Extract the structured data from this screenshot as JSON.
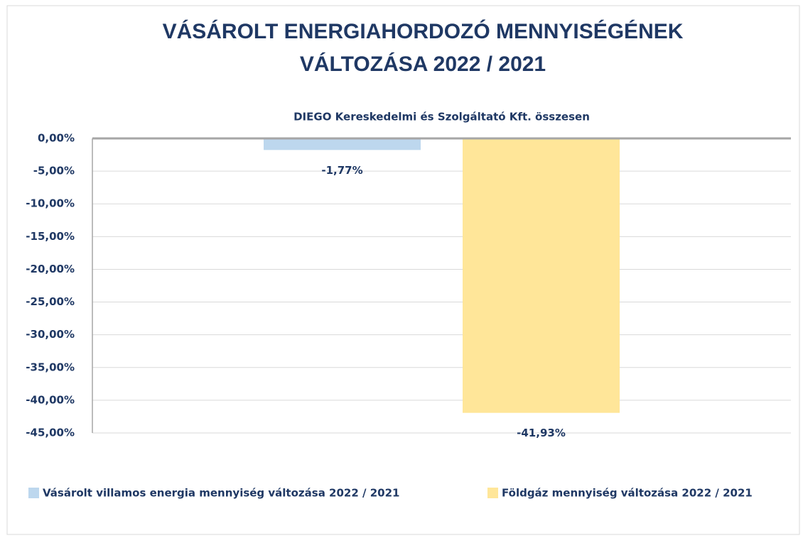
{
  "chart_data": {
    "type": "bar",
    "title": [
      "VÁSÁROLT ENERGIAHORDOZÓ MENNYISÉGÉNEK",
      "VÁLTOZÁSA 2022  / 2021"
    ],
    "categories": [
      "DIEGO Kereskedelmi és Szolgáltató Kft. összesen"
    ],
    "series": [
      {
        "name": "Vásárolt villamos energia mennyiség változása 2022  / 2021",
        "color": "#bdd7ee",
        "values": [
          -1.77
        ],
        "value_labels": [
          "-1,77%"
        ]
      },
      {
        "name": "Földgáz mennyiség változása 2022  / 2021",
        "color": "#ffe699",
        "values": [
          -41.93
        ],
        "value_labels": [
          "-41,93%"
        ]
      }
    ],
    "ylim": [
      -45,
      0
    ],
    "yticks": [
      {
        "value": 0,
        "label": "0,00%"
      },
      {
        "value": -5,
        "label": "-5,00%"
      },
      {
        "value": -10,
        "label": "-10,00%"
      },
      {
        "value": -15,
        "label": "-15,00%"
      },
      {
        "value": -20,
        "label": "-20,00%"
      },
      {
        "value": -25,
        "label": "-25,00%"
      },
      {
        "value": -30,
        "label": "-30,00%"
      },
      {
        "value": -35,
        "label": "-35,00%"
      },
      {
        "value": -40,
        "label": "-40,00%"
      },
      {
        "value": -45,
        "label": "-45,00%"
      }
    ],
    "grid": true,
    "legend": "bottom"
  }
}
